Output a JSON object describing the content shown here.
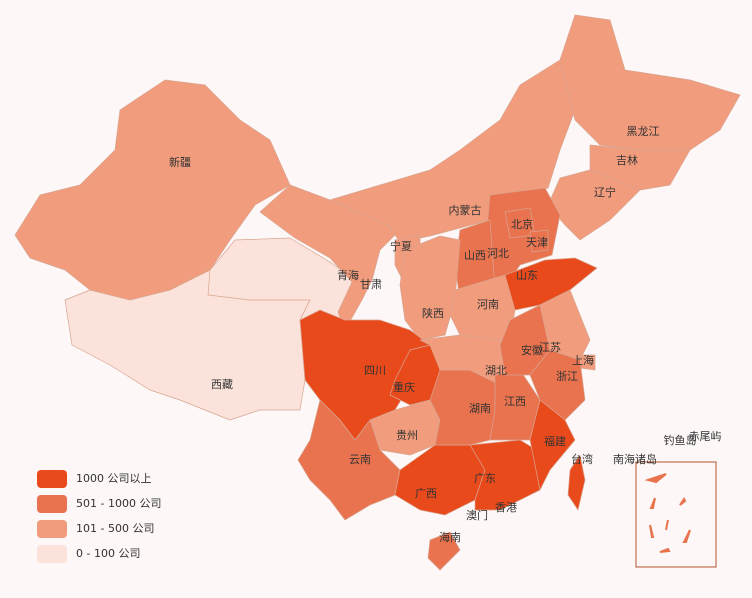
{
  "legend": [
    {
      "label": "1000 公司以上",
      "color": "#e94a1c"
    },
    {
      "label": "501 - 1000 公司",
      "color": "#e8734e"
    },
    {
      "label": "101 - 500 公司",
      "color": "#f19c7c"
    },
    {
      "label": "0 - 100 公司",
      "color": "#fbe3db"
    }
  ],
  "regions": [
    {
      "name": "新疆",
      "level": 2
    },
    {
      "name": "西藏",
      "level": 3
    },
    {
      "name": "青海",
      "level": 3
    },
    {
      "name": "甘肃",
      "level": 2
    },
    {
      "name": "内蒙古",
      "level": 2
    },
    {
      "name": "黑龙江",
      "level": 2
    },
    {
      "name": "吉林",
      "level": 2
    },
    {
      "name": "辽宁",
      "level": 2
    },
    {
      "name": "河北",
      "level": 1
    },
    {
      "name": "北京",
      "level": 1
    },
    {
      "name": "天津",
      "level": 1
    },
    {
      "name": "山西",
      "level": 1
    },
    {
      "name": "山东",
      "level": 0
    },
    {
      "name": "宁夏",
      "level": 2
    },
    {
      "name": "陕西",
      "level": 2
    },
    {
      "name": "河南",
      "level": 2
    },
    {
      "name": "四川",
      "level": 0
    },
    {
      "name": "重庆",
      "level": 0
    },
    {
      "name": "贵州",
      "level": 2
    },
    {
      "name": "云南",
      "level": 1
    },
    {
      "name": "广西",
      "level": 0
    },
    {
      "name": "广东",
      "level": 0
    },
    {
      "name": "海南",
      "level": 1
    },
    {
      "name": "湖南",
      "level": 1
    },
    {
      "name": "湖北",
      "level": 2
    },
    {
      "name": "江西",
      "level": 1
    },
    {
      "name": "安徽",
      "level": 1
    },
    {
      "name": "江苏",
      "level": 2
    },
    {
      "name": "上海",
      "level": 2
    },
    {
      "name": "浙江",
      "level": 1
    },
    {
      "name": "福建",
      "level": 0
    },
    {
      "name": "台湾",
      "level": 0
    }
  ],
  "labels": [
    "香港",
    "澳门",
    "南海诸岛",
    "钓鱼岛",
    "赤尾屿"
  ]
}
